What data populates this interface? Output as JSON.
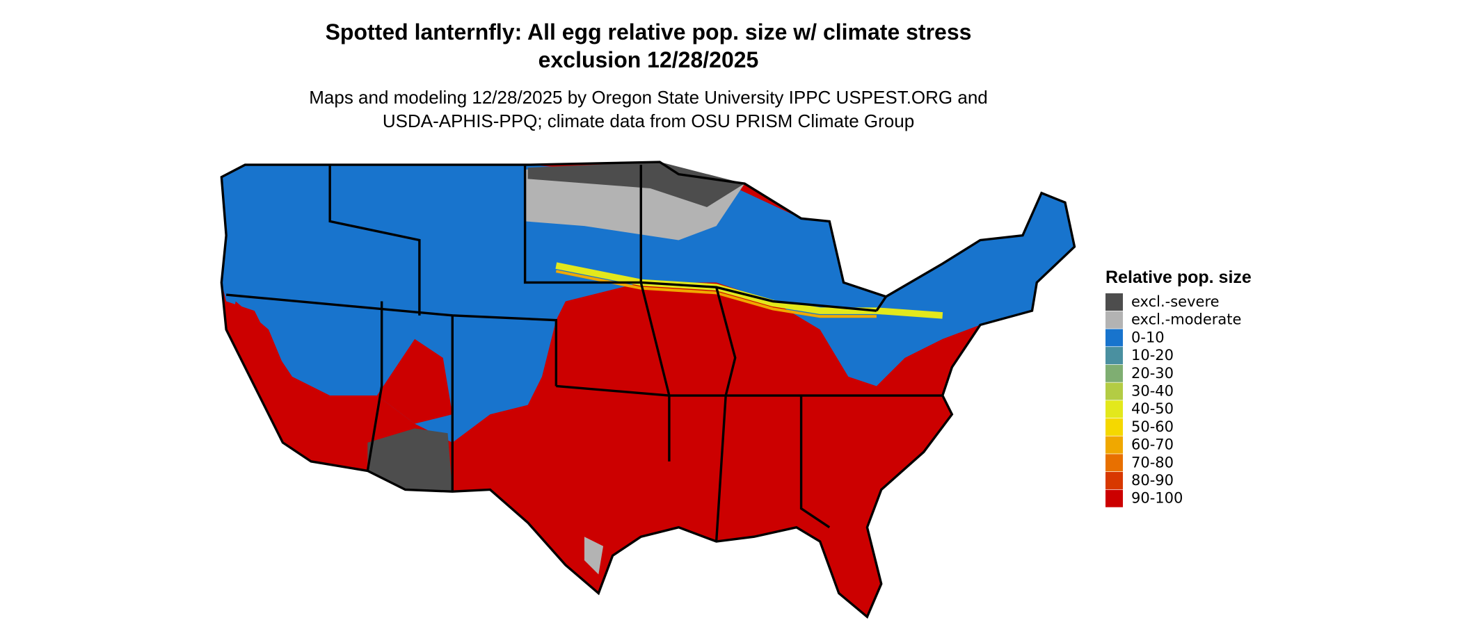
{
  "header": {
    "title_lines": [
      "Spotted lanternfly: All egg relative pop. size w/ climate stress",
      "exclusion 12/28/2025"
    ],
    "subtitle_lines": [
      "Maps and modeling 12/28/2025 by Oregon State University IPPC USPEST.ORG and",
      "USDA-APHIS-PPQ; climate data from OSU PRISM Climate Group"
    ]
  },
  "legend": {
    "title": "Relative pop. size",
    "items": [
      {
        "label": "excl.-severe",
        "color": "#4d4d4d"
      },
      {
        "label": "excl.-moderate",
        "color": "#b3b3b3"
      },
      {
        "label": "0-10",
        "color": "#1874cd"
      },
      {
        "label": "10-20",
        "color": "#4a90a0"
      },
      {
        "label": "20-30",
        "color": "#7fae72"
      },
      {
        "label": "30-40",
        "color": "#b3cc44"
      },
      {
        "label": "40-50",
        "color": "#e3e81c"
      },
      {
        "label": "50-60",
        "color": "#f5d800"
      },
      {
        "label": "60-70",
        "color": "#f0a800"
      },
      {
        "label": "70-80",
        "color": "#e87000"
      },
      {
        "label": "80-90",
        "color": "#d83800"
      },
      {
        "label": "90-100",
        "color": "#cc0000"
      }
    ]
  }
}
